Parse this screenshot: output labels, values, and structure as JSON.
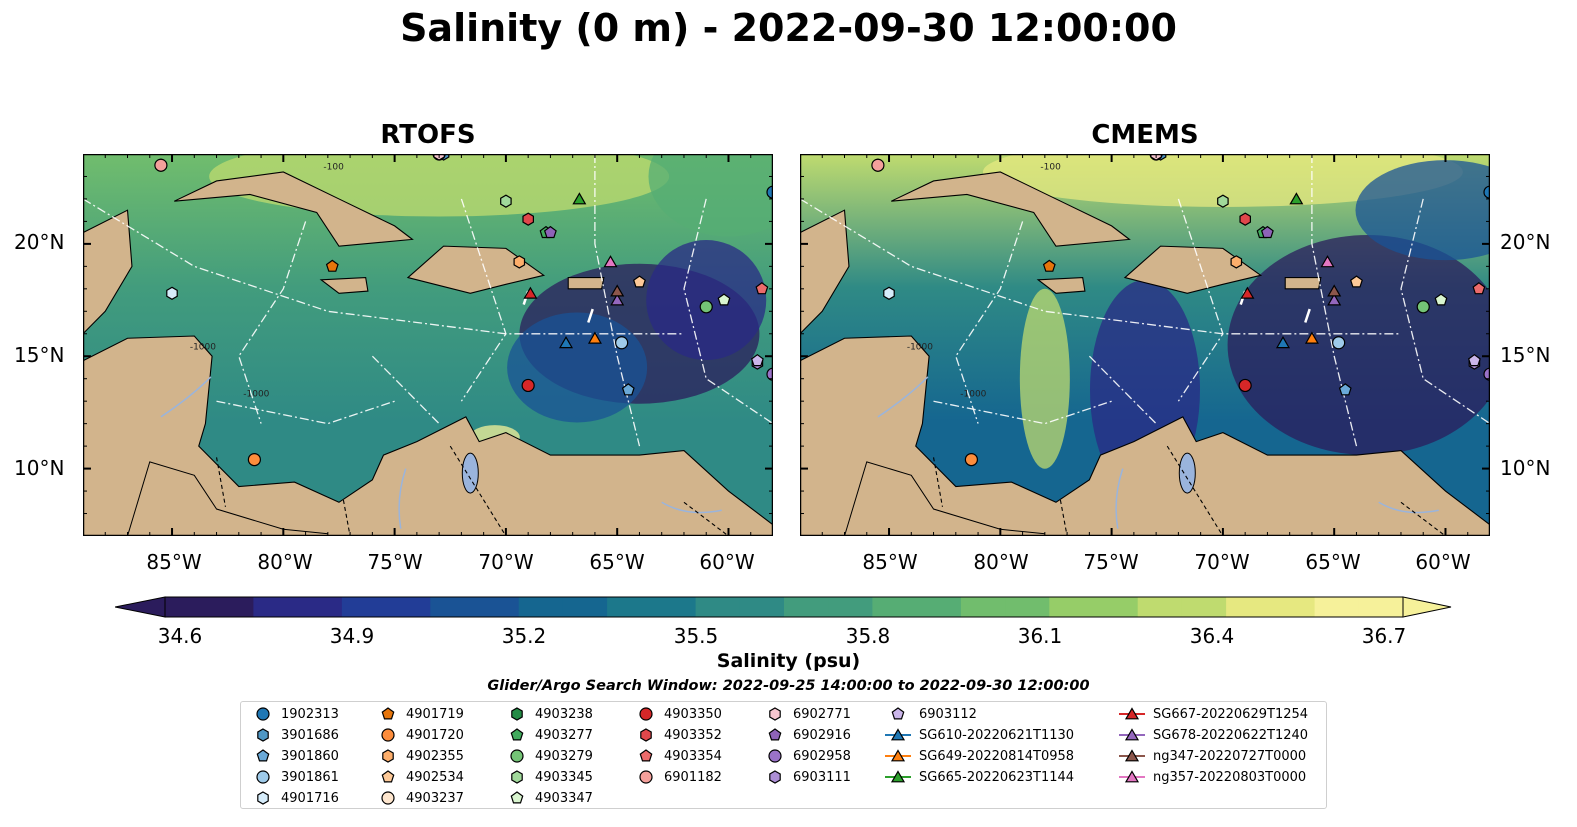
{
  "title": "Salinity (0 m) - 2022-09-30 12:00:00",
  "panels": [
    {
      "title": "RTOFS",
      "key": "rtofs"
    },
    {
      "title": "CMEMS",
      "key": "cmems"
    }
  ],
  "map": {
    "lat_ticks": [
      "20°N",
      "15°N",
      "10°N"
    ],
    "lon_ticks": [
      "85°W",
      "80°W",
      "75°W",
      "70°W",
      "65°W",
      "60°W"
    ],
    "extent": {
      "lon_min": -89,
      "lon_max": -58,
      "lat_min": 7,
      "lat_max": 24
    },
    "contour_labels": [
      "-100",
      "-1000"
    ],
    "colors": {
      "land": "#d2b48c",
      "rivers": "#9ab4dc",
      "eez_lines": "#ffffff",
      "coast": "#000000"
    }
  },
  "colorbar": {
    "label": "Salinity (psu)",
    "ticks": [
      "34.6",
      "34.9",
      "35.2",
      "35.5",
      "35.8",
      "36.1",
      "36.4",
      "36.7"
    ],
    "min": 34.6,
    "max": 36.7,
    "extend": "both",
    "colormap": [
      "#2b1c5c",
      "#2a2a86",
      "#223d97",
      "#1a5395",
      "#156690",
      "#1c788b",
      "#2f8a85",
      "#429c7d",
      "#56ad74",
      "#71bd6d",
      "#96cd68",
      "#bfdb6f",
      "#e6e880",
      "#f6f19a"
    ]
  },
  "search_window": "Glider/Argo Search Window: 2022-09-25 14:00:00 to 2022-09-30 12:00:00",
  "legend": {
    "columns": [
      [
        {
          "label": "1902313",
          "marker": "circle",
          "color": "#1f77b4"
        },
        {
          "label": "3901686",
          "marker": "hexagon",
          "color": "#4f97c4"
        },
        {
          "label": "3901860",
          "marker": "pentagon",
          "color": "#6aa9d8"
        },
        {
          "label": "3901861",
          "marker": "circle",
          "color": "#9ecae9"
        },
        {
          "label": "4901716",
          "marker": "hexagon",
          "color": "#d6ecfa"
        }
      ],
      [
        {
          "label": "4901719",
          "marker": "pentagon",
          "color": "#e6750b"
        },
        {
          "label": "4901720",
          "marker": "circle",
          "color": "#fd8d3c"
        },
        {
          "label": "4902355",
          "marker": "hexagon",
          "color": "#fdae6b"
        },
        {
          "label": "4902534",
          "marker": "pentagon",
          "color": "#fdc998"
        },
        {
          "label": "4903237",
          "marker": "circle",
          "color": "#fee6ce"
        }
      ],
      [
        {
          "label": "4903238",
          "marker": "hexagon",
          "color": "#238b45"
        },
        {
          "label": "4903277",
          "marker": "pentagon",
          "color": "#41ab5d"
        },
        {
          "label": "4903279",
          "marker": "circle",
          "color": "#74c476"
        },
        {
          "label": "4903345",
          "marker": "hexagon",
          "color": "#a1d99b"
        },
        {
          "label": "4903347",
          "marker": "pentagon",
          "color": "#d9f5cf"
        }
      ],
      [
        {
          "label": "4903350",
          "marker": "circle",
          "color": "#d62728"
        },
        {
          "label": "4903352",
          "marker": "hexagon",
          "color": "#e0474b"
        },
        {
          "label": "4903354",
          "marker": "pentagon",
          "color": "#ec6b6b"
        },
        {
          "label": "6901182",
          "marker": "circle",
          "color": "#f4a09b"
        }
      ],
      [
        {
          "label": "6902771",
          "marker": "hexagon",
          "color": "#f7c6cf"
        },
        {
          "label": "6902916",
          "marker": "pentagon",
          "color": "#8e63b8"
        },
        {
          "label": "6902958",
          "marker": "circle",
          "color": "#9a72c8"
        },
        {
          "label": "6903111",
          "marker": "hexagon",
          "color": "#ad8fd6"
        }
      ],
      [
        {
          "label": "6903112",
          "marker": "pentagon",
          "color": "#cbb6ea"
        },
        {
          "label": "SG610-20220621T1130",
          "marker": "triangle",
          "color": "#1f77b4"
        },
        {
          "label": "SG649-20220814T0958",
          "marker": "triangle",
          "color": "#ff7f0e"
        },
        {
          "label": "SG665-20220623T1144",
          "marker": "triangle",
          "color": "#2ca02c"
        }
      ],
      [
        {
          "label": "SG667-20220629T1254",
          "marker": "triangle",
          "color": "#d62728"
        },
        {
          "label": "SG678-20220622T1240",
          "marker": "triangle",
          "color": "#9467bd"
        },
        {
          "label": "ng347-20220727T0000",
          "marker": "triangle",
          "color": "#8c564b"
        },
        {
          "label": "ng357-20220803T0000",
          "marker": "triangle",
          "color": "#e377c2"
        }
      ]
    ]
  },
  "observations": [
    {
      "id": "1902313",
      "lon": -58.0,
      "lat": 22.3
    },
    {
      "id": "3901686",
      "lon": -72.8,
      "lat": 24.0
    },
    {
      "id": "3901860",
      "lon": -64.5,
      "lat": 13.5
    },
    {
      "id": "3901861",
      "lon": -64.8,
      "lat": 15.6
    },
    {
      "id": "4901716",
      "lon": -85.0,
      "lat": 17.8
    },
    {
      "id": "4901719",
      "lon": -77.8,
      "lat": 19.0
    },
    {
      "id": "4901720",
      "lon": -81.3,
      "lat": 10.4
    },
    {
      "id": "4902355",
      "lon": -69.4,
      "lat": 19.2
    },
    {
      "id": "4902534",
      "lon": -64.0,
      "lat": 18.3
    },
    {
      "id": "4903237",
      "lon": -73.0,
      "lat": 24.0
    },
    {
      "id": "4903238",
      "lon": -85.5,
      "lat": 23.5
    },
    {
      "id": "4903277",
      "lon": -68.2,
      "lat": 20.5
    },
    {
      "id": "4903279",
      "lon": -61.0,
      "lat": 17.2
    },
    {
      "id": "4903345",
      "lon": -70.0,
      "lat": 21.9
    },
    {
      "id": "4903347",
      "lon": -60.2,
      "lat": 17.5
    },
    {
      "id": "4903350",
      "lon": -69.0,
      "lat": 13.7
    },
    {
      "id": "4903352",
      "lon": -69.0,
      "lat": 21.1
    },
    {
      "id": "4903354",
      "lon": -58.5,
      "lat": 18.0
    },
    {
      "id": "6901182",
      "lon": -85.5,
      "lat": 23.5
    },
    {
      "id": "6902771",
      "lon": -73.0,
      "lat": 24.0
    },
    {
      "id": "6902916",
      "lon": -68.0,
      "lat": 20.5
    },
    {
      "id": "6902958",
      "lon": -58.0,
      "lat": 14.2
    },
    {
      "id": "6903111",
      "lon": -58.7,
      "lat": 14.7
    },
    {
      "id": "6903112",
      "lon": -58.7,
      "lat": 14.8
    },
    {
      "id": "SG610-20220621T1130",
      "lon": -67.3,
      "lat": 15.6
    },
    {
      "id": "SG649-20220814T0958",
      "lon": -66.0,
      "lat": 15.8
    },
    {
      "id": "SG665-20220623T1144",
      "lon": -66.7,
      "lat": 22.0
    },
    {
      "id": "SG667-20220629T1254",
      "lon": -68.9,
      "lat": 17.8
    },
    {
      "id": "SG678-20220622T1240",
      "lon": -65.0,
      "lat": 17.5
    },
    {
      "id": "ng347-20220727T0000",
      "lon": -65.0,
      "lat": 17.9
    },
    {
      "id": "ng357-20220803T0000",
      "lon": -65.3,
      "lat": 19.2
    }
  ]
}
